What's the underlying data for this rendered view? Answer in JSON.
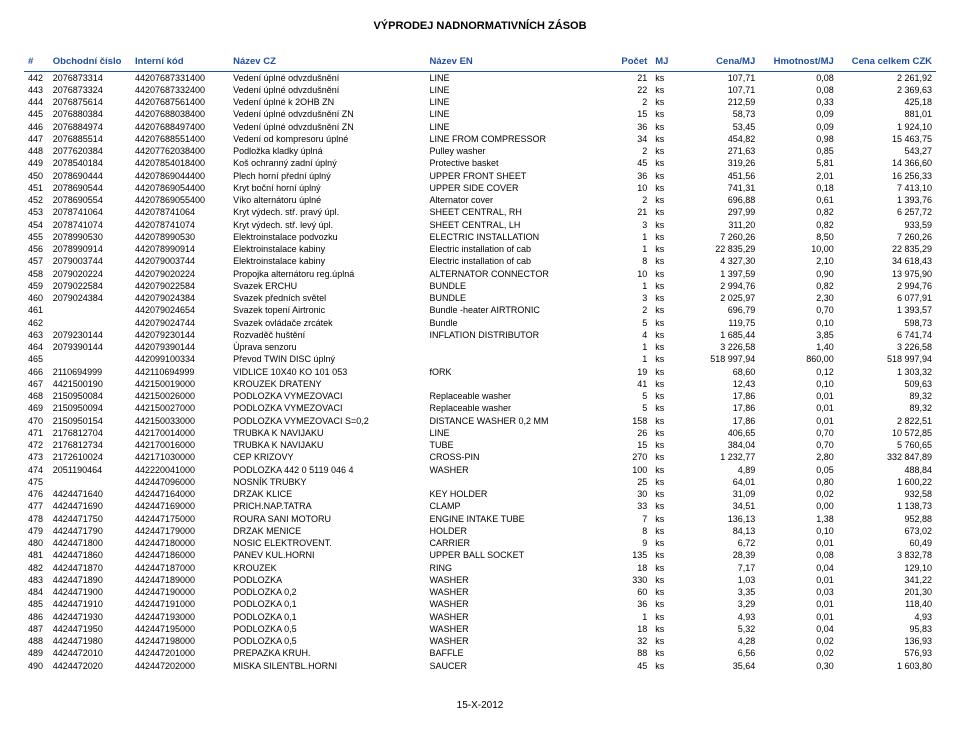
{
  "title": "VÝPRODEJ NADNORMATIVNÍCH ZÁSOB",
  "footer": "15-X-2012",
  "headers": {
    "idx": "#",
    "obch": "Obchodní číslo",
    "int": "Interní kód",
    "cz": "Název CZ",
    "en": "Název EN",
    "poc": "Počet",
    "mj": "MJ",
    "cena": "Cena/MJ",
    "hm": "Hmotnost/MJ",
    "tot": "Cena celkem CZK"
  },
  "table_style": {
    "header_color": "#1f4fa0",
    "header_font_size": 10,
    "body_font_size": 9,
    "border_color": "#1f4fa0",
    "background": "#ffffff"
  },
  "rows": [
    [
      "442",
      "2076873314",
      "44207687331400",
      "Vedení úplné odvzdušnění",
      "LINE",
      "21",
      "ks",
      "107,71",
      "0,08",
      "2 261,92"
    ],
    [
      "443",
      "2076873324",
      "44207687332400",
      "Vedení úplné odvzdušnění",
      "LINE",
      "22",
      "ks",
      "107,71",
      "0,08",
      "2 369,63"
    ],
    [
      "444",
      "2076875614",
      "44207687561400",
      "Vedení úplné k 2OHB ZN",
      "LINE",
      "2",
      "ks",
      "212,59",
      "0,33",
      "425,18"
    ],
    [
      "445",
      "2076880384",
      "44207688038400",
      "Vedení úplné odvzdušnění ZN",
      "LINE",
      "15",
      "ks",
      "58,73",
      "0,09",
      "881,01"
    ],
    [
      "446",
      "2076884974",
      "44207688497400",
      "Vedení úplné odvzdušnění ZN",
      "LINE",
      "36",
      "ks",
      "53,45",
      "0,09",
      "1 924,10"
    ],
    [
      "447",
      "2076885514",
      "44207688551400",
      "Vedení od kompresoru úplné",
      "LINE FROM COMPRESSOR",
      "34",
      "ks",
      "454,82",
      "0,98",
      "15 463,75"
    ],
    [
      "448",
      "2077620384",
      "44207762038400",
      "Podložka kladky úplná",
      "Pulley washer",
      "2",
      "ks",
      "271,63",
      "0,85",
      "543,27"
    ],
    [
      "449",
      "2078540184",
      "44207854018400",
      "Koš ochranný zadní úplný",
      "Protective basket",
      "45",
      "ks",
      "319,26",
      "5,81",
      "14 366,60"
    ],
    [
      "450",
      "2078690444",
      "44207869044400",
      "Plech horní přední úplný",
      "UPPER FRONT SHEET",
      "36",
      "ks",
      "451,56",
      "2,01",
      "16 256,33"
    ],
    [
      "451",
      "2078690544",
      "44207869054400",
      "Kryt boční horní úplný",
      "UPPER SIDE COVER",
      "10",
      "ks",
      "741,31",
      "0,18",
      "7 413,10"
    ],
    [
      "452",
      "2078690554",
      "44207869055400",
      "Víko alternátoru úplné",
      "Alternator cover",
      "2",
      "ks",
      "696,88",
      "0,61",
      "1 393,76"
    ],
    [
      "453",
      "2078741064",
      "442078741064",
      "Kryt výdech. stř. pravý úpl.",
      "SHEET CENTRAL, RH",
      "21",
      "ks",
      "297,99",
      "0,82",
      "6 257,72"
    ],
    [
      "454",
      "2078741074",
      "442078741074",
      "Kryt výdech. stř. levý úpl.",
      "SHEET CENTRAL, LH",
      "3",
      "ks",
      "311,20",
      "0,82",
      "933,59"
    ],
    [
      "455",
      "2078990530",
      "442078990530",
      "Elektroinstalace podvozku",
      "ELECTRIC INSTALLATION",
      "1",
      "ks",
      "7 260,26",
      "8,50",
      "7 260,26"
    ],
    [
      "456",
      "2078990914",
      "442078990914",
      "Elektroinstalace kabiny",
      "Electric installation of cab",
      "1",
      "ks",
      "22 835,29",
      "10,00",
      "22 835,29"
    ],
    [
      "457",
      "2079003744",
      "442079003744",
      "Elektroinstalace kabiny",
      "Electric installation of cab",
      "8",
      "ks",
      "4 327,30",
      "2,10",
      "34 618,43"
    ],
    [
      "458",
      "2079020224",
      "442079020224",
      "Propojka alternátoru reg.úplná",
      "ALTERNATOR CONNECTOR",
      "10",
      "ks",
      "1 397,59",
      "0,90",
      "13 975,90"
    ],
    [
      "459",
      "2079022584",
      "442079022584",
      "Svazek ERCHU",
      "BUNDLE",
      "1",
      "ks",
      "2 994,76",
      "0,82",
      "2 994,76"
    ],
    [
      "460",
      "2079024384",
      "442079024384",
      "Svazek předních světel",
      "BUNDLE",
      "3",
      "ks",
      "2 025,97",
      "2,30",
      "6 077,91"
    ],
    [
      "461",
      "",
      "442079024654",
      "Svazek topení Airtronic",
      "Bundle -heater AIRTRONIC",
      "2",
      "ks",
      "696,79",
      "0,70",
      "1 393,57"
    ],
    [
      "462",
      "",
      "442079024744",
      "Svazek ovládače zrcátek",
      "Bundle",
      "5",
      "ks",
      "119,75",
      "0,10",
      "598,73"
    ],
    [
      "463",
      "2079230144",
      "442079230144",
      "Rozvaděč huštění",
      "INFLATION DISTRIBUTOR",
      "4",
      "ks",
      "1 685,44",
      "3,85",
      "6 741,74"
    ],
    [
      "464",
      "2079390144",
      "442079390144",
      "Úprava senzoru",
      "",
      "1",
      "ks",
      "3 226,58",
      "1,40",
      "3 226,58"
    ],
    [
      "465",
      "",
      "442099100334",
      "Převod TWIN DISC úplný",
      "",
      "1",
      "ks",
      "518 997,94",
      "860,00",
      "518 997,94"
    ],
    [
      "466",
      "2110694999",
      "442110694999",
      "VIDLICE 10X40 KO 101 053",
      "fORK",
      "19",
      "ks",
      "68,60",
      "0,12",
      "1 303,32"
    ],
    [
      "467",
      "4421500190",
      "442150019000",
      "KROUZEK DRATENY",
      "",
      "41",
      "ks",
      "12,43",
      "0,10",
      "509,63"
    ],
    [
      "468",
      "2150950084",
      "442150026000",
      "PODLOZKA VYMEZOVACI",
      "Replaceable washer",
      "5",
      "ks",
      "17,86",
      "0,01",
      "89,32"
    ],
    [
      "469",
      "2150950094",
      "442150027000",
      "PODLOZKA VYMEZOVACI",
      "Replaceable washer",
      "5",
      "ks",
      "17,86",
      "0,01",
      "89,32"
    ],
    [
      "470",
      "2150950154",
      "442150033000",
      "PODLOZKA VYMEZOVACI S=0,2",
      "DISTANCE WASHER 0,2 MM",
      "158",
      "ks",
      "17,86",
      "0,01",
      "2 822,51"
    ],
    [
      "471",
      "2176812704",
      "442170014000",
      "TRUBKA K NAVIJAKU",
      "LINE",
      "26",
      "ks",
      "406,65",
      "0,70",
      "10 572,85"
    ],
    [
      "472",
      "2176812734",
      "442170016000",
      "TRUBKA K NAVIJAKU",
      "TUBE",
      "15",
      "ks",
      "384,04",
      "0,70",
      "5 760,65"
    ],
    [
      "473",
      "2172610024",
      "442171030000",
      "CEP KRIZOVY",
      "CROSS-PIN",
      "270",
      "ks",
      "1 232,77",
      "2,80",
      "332 847,89"
    ],
    [
      "474",
      "2051190464",
      "442220041000",
      "PODLOZKA 442 0 5119 046 4",
      "WASHER",
      "100",
      "ks",
      "4,89",
      "0,05",
      "488,84"
    ],
    [
      "475",
      "",
      "442447096000",
      "NOSNÍK TRUBKY",
      "",
      "25",
      "ks",
      "64,01",
      "0,80",
      "1 600,22"
    ],
    [
      "476",
      "4424471640",
      "442447164000",
      "DRZAK KLICE",
      "KEY HOLDER",
      "30",
      "ks",
      "31,09",
      "0,02",
      "932,58"
    ],
    [
      "477",
      "4424471690",
      "442447169000",
      "PRICH.NAP.TATRA",
      "CLAMP",
      "33",
      "ks",
      "34,51",
      "0,00",
      "1 138,73"
    ],
    [
      "478",
      "4424471750",
      "442447175000",
      "ROURA SANI MOTORU",
      "ENGINE INTAKE TUBE",
      "7",
      "ks",
      "136,13",
      "1,38",
      "952,88"
    ],
    [
      "479",
      "4424471790",
      "442447179000",
      "DRZAK MENICE",
      "HOLDER",
      "8",
      "ks",
      "84,13",
      "0,10",
      "673,02"
    ],
    [
      "480",
      "4424471800",
      "442447180000",
      "NOSIC ELEKTROVENT.",
      "CARRIER",
      "9",
      "ks",
      "6,72",
      "0,01",
      "60,49"
    ],
    [
      "481",
      "4424471860",
      "442447186000",
      "PANEV KUL.HORNI",
      "UPPER BALL SOCKET",
      "135",
      "ks",
      "28,39",
      "0,08",
      "3 832,78"
    ],
    [
      "482",
      "4424471870",
      "442447187000",
      "KROUZEK",
      "RING",
      "18",
      "ks",
      "7,17",
      "0,04",
      "129,10"
    ],
    [
      "483",
      "4424471890",
      "442447189000",
      "PODLOZKA",
      "WASHER",
      "330",
      "ks",
      "1,03",
      "0,01",
      "341,22"
    ],
    [
      "484",
      "4424471900",
      "442447190000",
      "PODLOZKA 0,2",
      "WASHER",
      "60",
      "ks",
      "3,35",
      "0,03",
      "201,30"
    ],
    [
      "485",
      "4424471910",
      "442447191000",
      "PODLOZKA 0,1",
      "WASHER",
      "36",
      "ks",
      "3,29",
      "0,01",
      "118,40"
    ],
    [
      "486",
      "4424471930",
      "442447193000",
      "PODLOZKA 0,1",
      "WASHER",
      "1",
      "ks",
      "4,93",
      "0,01",
      "4,93"
    ],
    [
      "487",
      "4424471950",
      "442447195000",
      "PODLOZKA 0,5",
      "WASHER",
      "18",
      "ks",
      "5,32",
      "0,04",
      "95,83"
    ],
    [
      "488",
      "4424471980",
      "442447198000",
      "PODLOZKA 0,5",
      "WASHER",
      "32",
      "ks",
      "4,28",
      "0,02",
      "136,93"
    ],
    [
      "489",
      "4424472010",
      "442447201000",
      "PREPAZKA KRUH.",
      "BAFFLE",
      "88",
      "ks",
      "6,56",
      "0,02",
      "576,93"
    ],
    [
      "490",
      "4424472020",
      "442447202000",
      "MISKA SILENTBL.HORNI",
      "SAUCER",
      "45",
      "ks",
      "35,64",
      "0,30",
      "1 603,80"
    ]
  ]
}
